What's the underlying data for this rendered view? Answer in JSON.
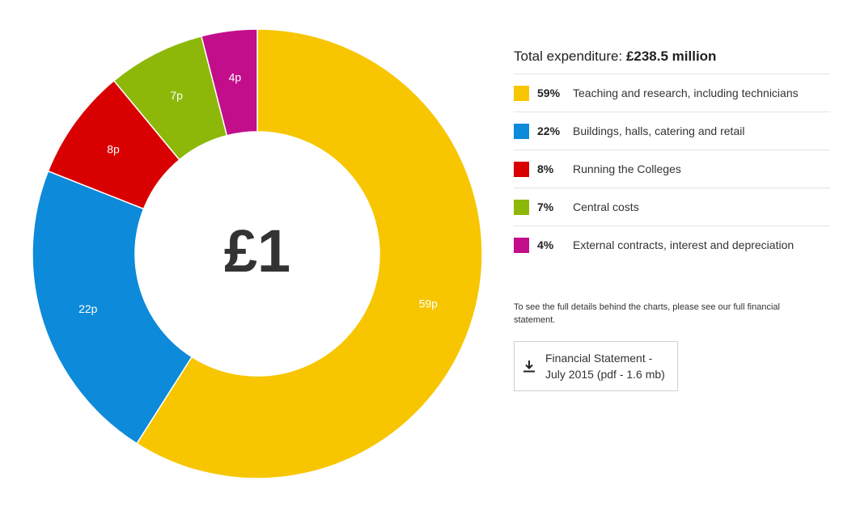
{
  "chart_data": {
    "type": "pie",
    "center_label": "£1",
    "categories": [
      "Teaching and research, including technicians",
      "Buildings, halls, catering and retail",
      "Running the Colleges",
      "Central costs",
      "External contracts, interest and depreciation"
    ],
    "values": [
      59,
      22,
      8,
      7,
      4
    ],
    "slice_labels": [
      "59p",
      "22p",
      "8p",
      "7p",
      "4p"
    ],
    "colors": [
      "#f7c600",
      "#0d8ad9",
      "#d80000",
      "#8db80a",
      "#c20e8a"
    ]
  },
  "summary": {
    "label": "Total expenditure:",
    "value": "£238.5 million"
  },
  "legend": [
    {
      "percent": "59%",
      "label": "Teaching and research, including technicians",
      "color": "#f7c600"
    },
    {
      "percent": "22%",
      "label": "Buildings, halls, catering and retail",
      "color": "#0d8ad9"
    },
    {
      "percent": "8%",
      "label": "Running the Colleges",
      "color": "#d80000"
    },
    {
      "percent": "7%",
      "label": "Central costs",
      "color": "#8db80a"
    },
    {
      "percent": "4%",
      "label": "External contracts, interest and depreciation",
      "color": "#c20e8a"
    }
  ],
  "note": "To see the full details behind the charts, please see our full financial statement.",
  "download": {
    "icon": "download-icon",
    "line1": "Financial Statement -",
    "line2": "July 2015 (pdf - 1.6 mb)"
  }
}
